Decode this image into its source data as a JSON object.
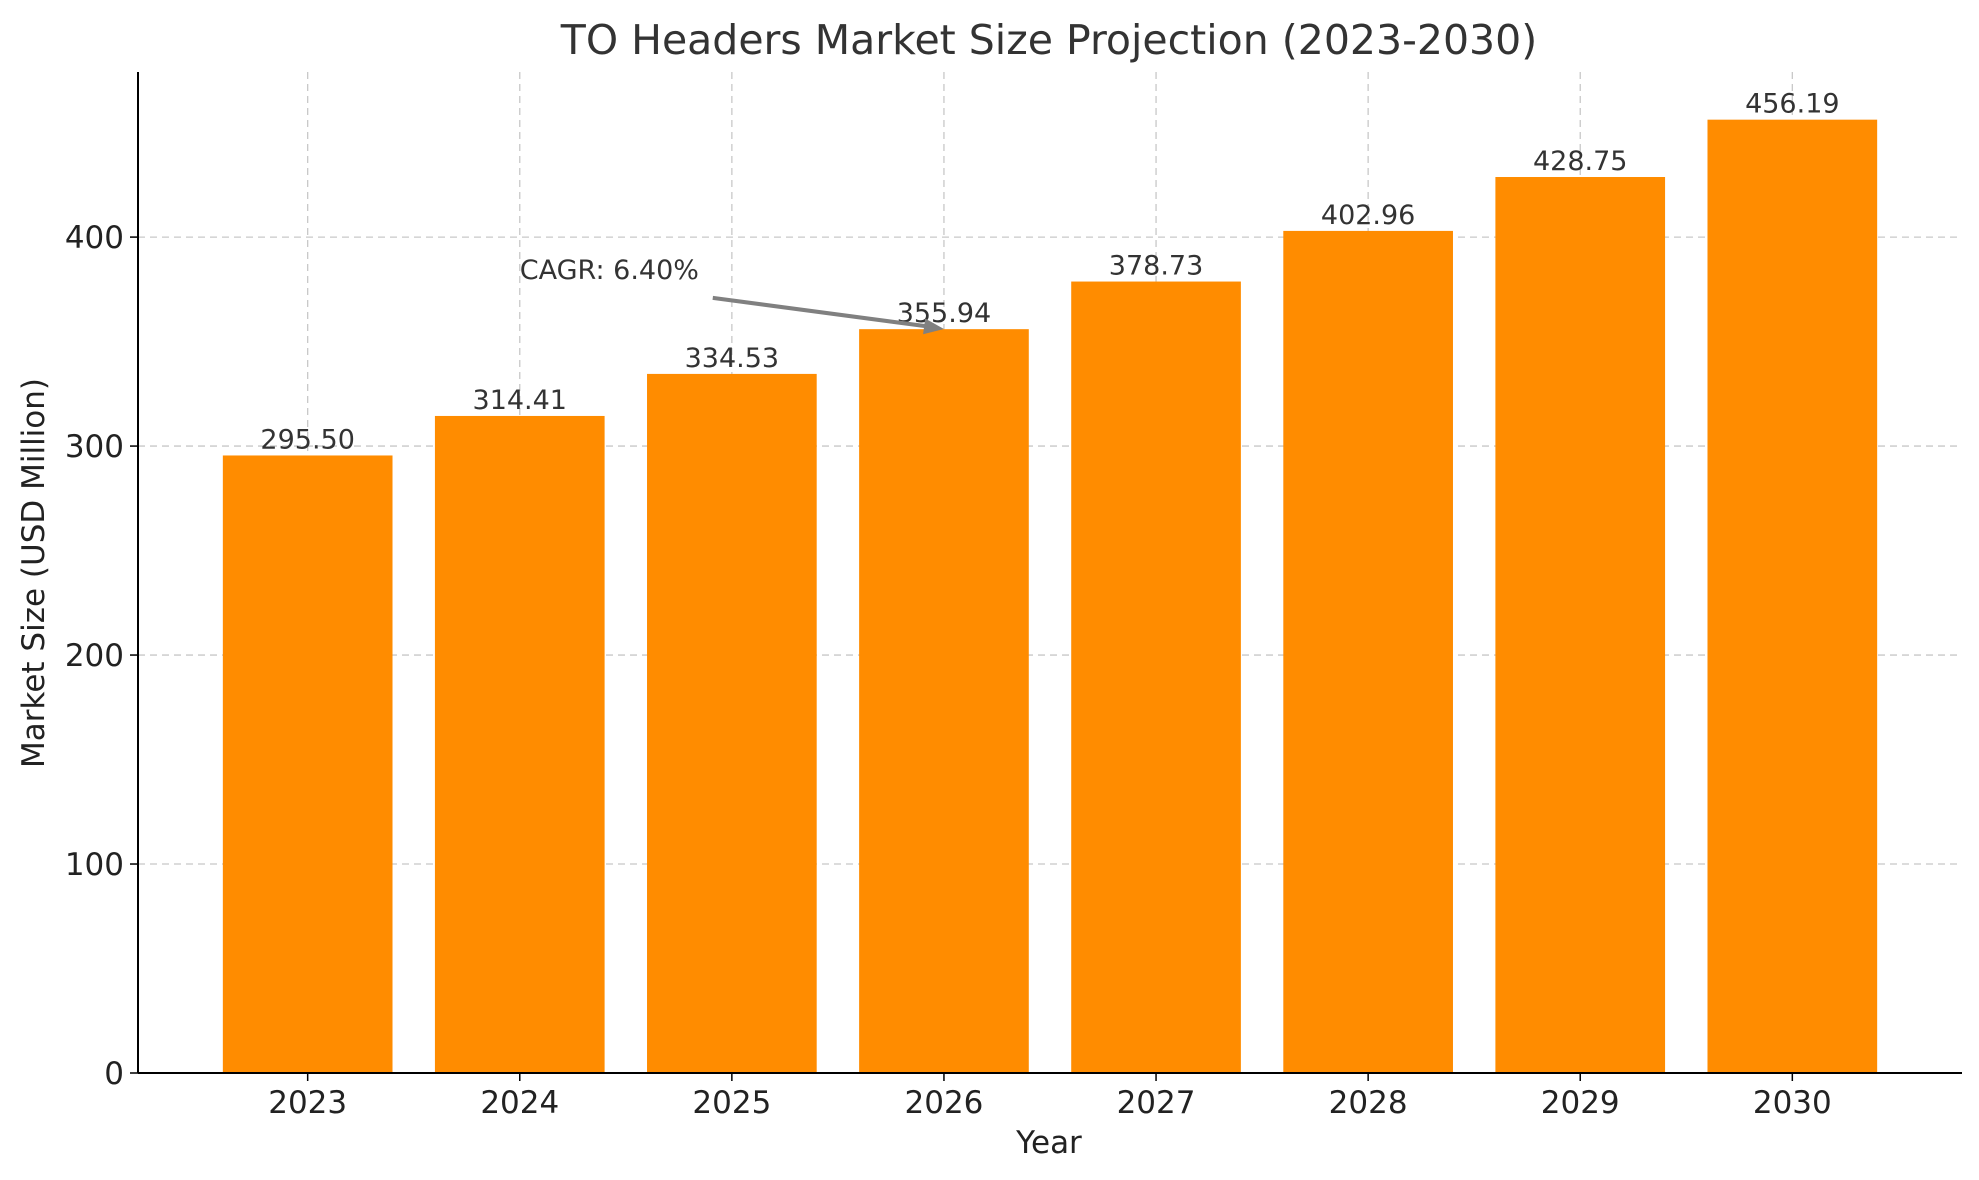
{
  "chart_data": {
    "type": "bar",
    "title": "TO Headers Market Size Projection (2023-2030)",
    "xlabel": "Year",
    "ylabel": "Market Size (USD Million)",
    "categories": [
      "2023",
      "2024",
      "2025",
      "2026",
      "2027",
      "2028",
      "2029",
      "2030"
    ],
    "values": [
      295.5,
      314.41,
      334.53,
      355.94,
      378.73,
      402.96,
      428.75,
      456.19
    ],
    "value_labels": [
      "295.50",
      "314.41",
      "334.53",
      "355.94",
      "378.73",
      "402.96",
      "428.75",
      "456.19"
    ],
    "ylim": [
      0,
      479
    ],
    "yticks": [
      0,
      100,
      200,
      300,
      400
    ],
    "grid": true,
    "bar_color": "#ff8c00",
    "annotation": {
      "text": "CAGR: 6.40%",
      "text_at": [
        "2024",
        380
      ],
      "arrow_to": [
        "2026",
        356
      ],
      "arrow_color": "#808080"
    }
  }
}
